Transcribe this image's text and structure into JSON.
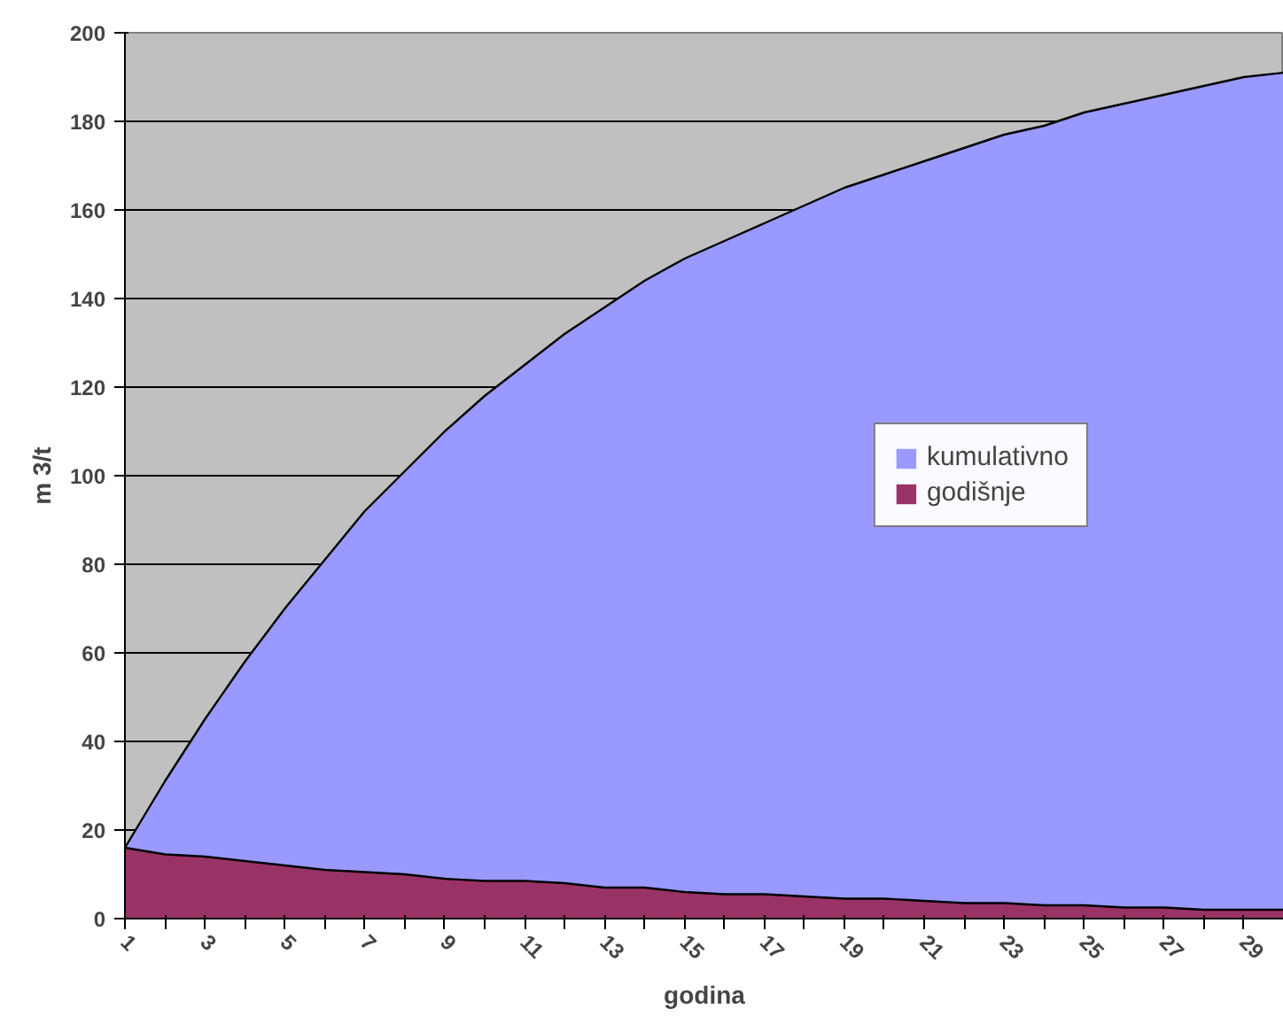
{
  "chart_data": {
    "type": "area",
    "xlabel": "godina",
    "ylabel": "m 3/t",
    "x": [
      1,
      2,
      3,
      4,
      5,
      6,
      7,
      8,
      9,
      10,
      11,
      12,
      13,
      14,
      15,
      16,
      17,
      18,
      19,
      20,
      21,
      22,
      23,
      24,
      25,
      26,
      27,
      28,
      29,
      30
    ],
    "xlim": [
      1,
      30
    ],
    "xticks": [
      1,
      {
        "value": 2,
        "label": null
      },
      3,
      {
        "value": 4,
        "label": null
      },
      5,
      {
        "value": 6,
        "label": null
      },
      7,
      {
        "value": 8,
        "label": null
      },
      9,
      {
        "value": 10,
        "label": null
      },
      11,
      {
        "value": 12,
        "label": null
      },
      13,
      {
        "value": 14,
        "label": null
      },
      15,
      {
        "value": 16,
        "label": null
      },
      17,
      {
        "value": 18,
        "label": null
      },
      19,
      {
        "value": 20,
        "label": null
      },
      21,
      {
        "value": 22,
        "label": null
      },
      23,
      {
        "value": 24,
        "label": null
      },
      25,
      {
        "value": 26,
        "label": null
      },
      27,
      {
        "value": 28,
        "label": null
      },
      29,
      {
        "value": 30,
        "label": null
      }
    ],
    "ylim": [
      0,
      200
    ],
    "yticks": [
      0,
      20,
      40,
      60,
      80,
      100,
      120,
      140,
      160,
      180,
      200
    ],
    "grid": "y",
    "legend": "right",
    "series": [
      {
        "name": "kumulativno",
        "color": "#9999ff",
        "values": [
          16,
          31,
          45,
          58,
          70,
          81,
          92,
          101,
          110,
          118,
          125,
          132,
          138,
          144,
          149,
          153,
          157,
          161,
          165,
          168,
          171,
          174,
          177,
          179,
          182,
          184,
          186,
          188,
          190,
          191
        ]
      },
      {
        "name": "godišnje",
        "color": "#993366",
        "values": [
          16,
          14.5,
          14,
          13,
          12,
          11,
          10.5,
          10,
          9,
          8.5,
          8.5,
          8,
          7,
          7,
          6,
          5.5,
          5.5,
          5,
          4.5,
          4.5,
          4,
          3.5,
          3.5,
          3,
          3,
          2.5,
          2.5,
          2,
          2,
          2
        ]
      }
    ]
  }
}
